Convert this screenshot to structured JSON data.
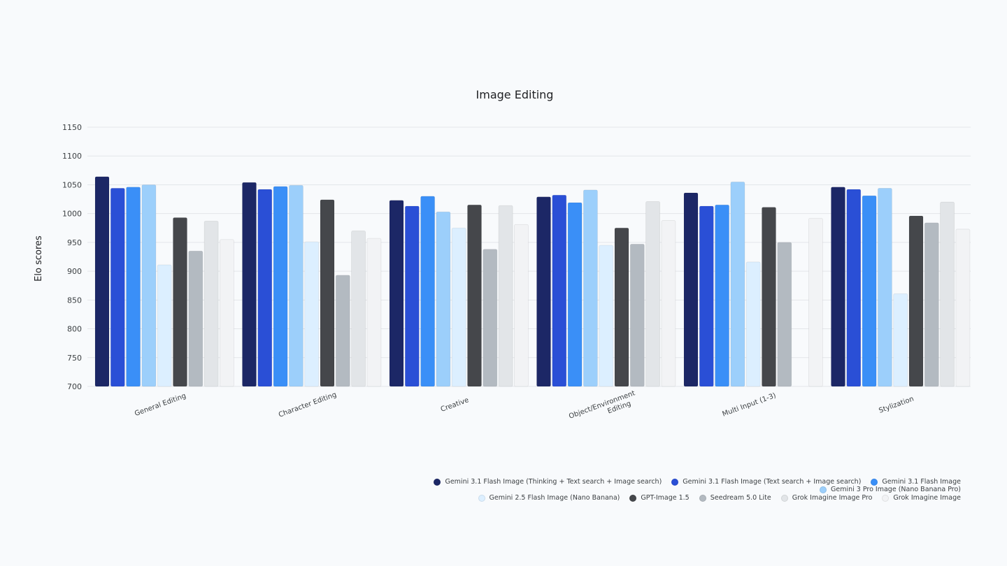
{
  "chart_data": {
    "type": "bar",
    "title": "Image Editing",
    "xlabel": "",
    "ylabel": "Elo scores",
    "ylim": [
      700,
      1150
    ],
    "yticks": [
      700,
      750,
      800,
      850,
      900,
      950,
      1000,
      1050,
      1100,
      1150
    ],
    "grid": true,
    "legend_position": "bottom-right",
    "categories": [
      "General Editing",
      "Character Editing",
      "Creative",
      "Object/Environment Editing",
      "Multi Input (1-3)",
      "Stylization"
    ],
    "series": [
      {
        "name": "Gemini 3.1 Flash Image (Thinking + Text search + Image search)",
        "color": "#1c2766",
        "values": [
          1064,
          1054,
          1023,
          1029,
          1036,
          1046
        ]
      },
      {
        "name": "Gemini 3.1 Flash Image (Text search + Image search)",
        "color": "#2a4fd6",
        "values": [
          1044,
          1042,
          1013,
          1032,
          1013,
          1042
        ]
      },
      {
        "name": "Gemini 3.1 Flash Image",
        "color": "#3a8ff7",
        "values": [
          1046,
          1047,
          1030,
          1019,
          1015,
          1031
        ]
      },
      {
        "name": "Gemini 3 Pro Image (Nano Banana Pro)",
        "color": "#9ccffb",
        "values": [
          1050,
          1049,
          1003,
          1041,
          1055,
          1044
        ]
      },
      {
        "name": "Gemini 2.5 Flash Image (Nano Banana)",
        "color": "#dcefff",
        "values": [
          911,
          951,
          975,
          945,
          916,
          861
        ]
      },
      {
        "name": "GPT-Image 1.5",
        "color": "#45474b",
        "values": [
          993,
          1024,
          1015,
          975,
          1011,
          996
        ]
      },
      {
        "name": "Seedream 5.0 Lite",
        "color": "#b3bac1",
        "values": [
          935,
          893,
          938,
          947,
          950,
          984
        ]
      },
      {
        "name": "Grok Imagine Image Pro",
        "color": "#e2e5e8",
        "values": [
          987,
          970,
          1014,
          1021,
          null,
          1020
        ]
      },
      {
        "name": "Grok Imagine Image",
        "color": "#f2f3f5",
        "values": [
          955,
          957,
          981,
          988,
          992,
          973
        ]
      }
    ]
  }
}
